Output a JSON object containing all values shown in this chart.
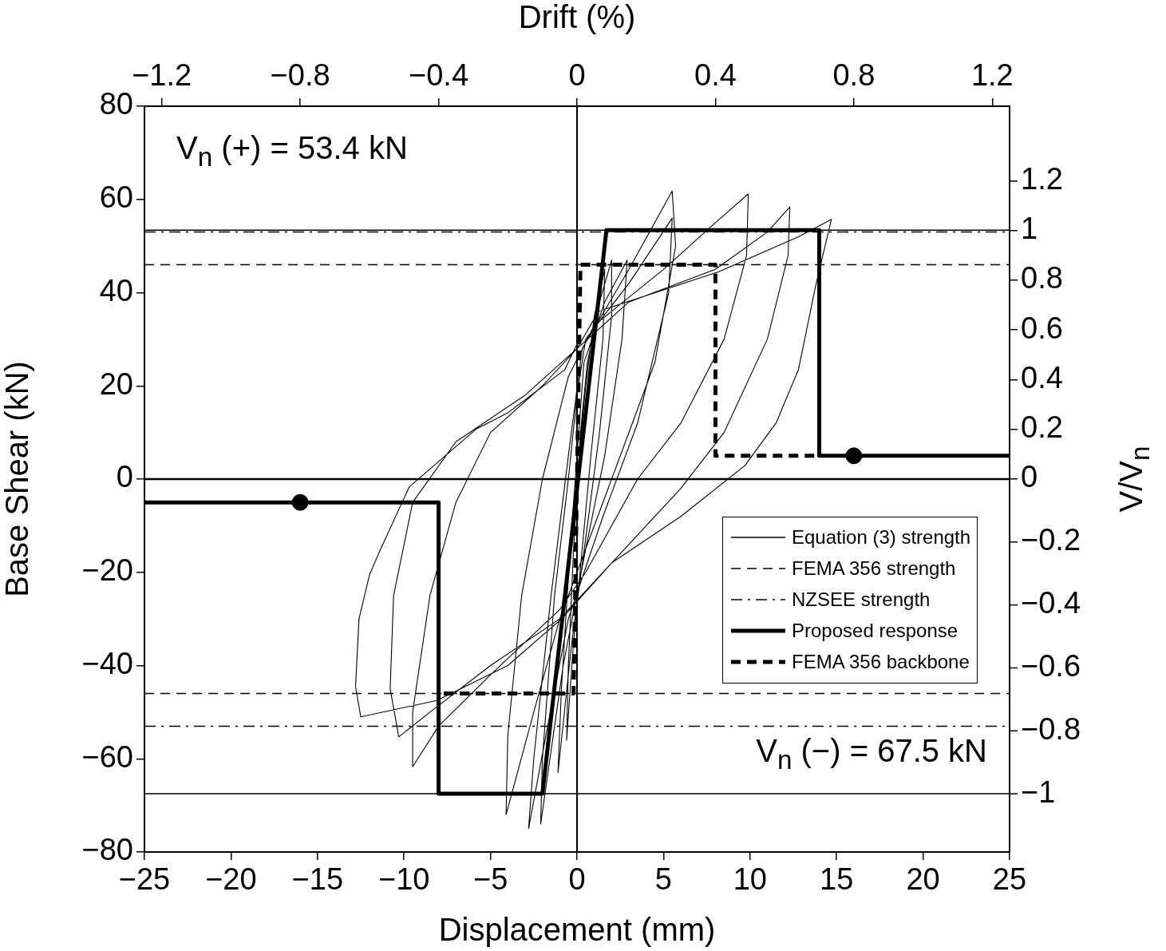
{
  "chart_data": {
    "type": "line",
    "xlabel": "Displacement (mm)",
    "ylabel": "Base Shear (kN)",
    "x2label": "Drift (%)",
    "y2label": "V/V$_{n}$",
    "xlim": [
      -25,
      25
    ],
    "xticks": [
      -25,
      -20,
      -15,
      -10,
      -5,
      0,
      5,
      10,
      15,
      20,
      25
    ],
    "ylim": [
      -80,
      80
    ],
    "yticks": [
      -80,
      -60,
      -40,
      -20,
      0,
      20,
      40,
      60,
      80
    ],
    "x2lim": [
      -1.25,
      1.25
    ],
    "x2ticks": [
      -1.2,
      -0.8,
      -0.4,
      0,
      0.4,
      0.8,
      1.2
    ],
    "y2lim": [
      -1.5,
      1.5
    ],
    "y2ticks": [
      0,
      0.2,
      0.4,
      0.6,
      0.8,
      1,
      1.2
    ],
    "y3lim": [
      -1.185,
      1.185
    ],
    "y3ticks": [
      -1,
      -0.8,
      -0.6,
      -0.4,
      -0.2
    ],
    "grid": false,
    "legend": "right",
    "marker": "none",
    "line_style": "solid",
    "annotations": [
      "V$_{n}$ (+) = 53.4 kN",
      "V$_{n}$ (−) = 67.5 kN"
    ],
    "series": [
      {
        "color": "#000000",
        "line_style": "solid",
        "x": [
          0,
          0
        ],
        "values": [
          -80,
          80
        ]
      },
      {
        "color": "#000000",
        "line_style": "solid",
        "x": [
          -25,
          25
        ],
        "values": [
          0,
          0
        ]
      },
      {
        "color": "#000000",
        "x": [
          0,
          0.5,
          1,
          1.6,
          1.5,
          0.8,
          0.3,
          -0.2,
          -0.6,
          -0.5,
          -0.2,
          0.2,
          0.6,
          1.3,
          2.0,
          2.0,
          1.3,
          0.6,
          -0.3,
          -1.1,
          -0.9,
          -0.4,
          0,
          0.4,
          1.6,
          2.9,
          2.6,
          1.6,
          0.5,
          -0.8,
          -2.1,
          -2.0,
          -1.3,
          -0.5,
          0,
          0.5,
          3,
          5.5,
          5.3,
          3.5,
          1.5,
          -0.5,
          -1.8,
          -2.8,
          -2.5,
          -1.5,
          -0.5,
          0.3,
          3,
          5.5,
          5.7,
          4.5,
          2.5,
          0.5,
          -1,
          -2.5,
          -4.1,
          -4.0,
          -3.2,
          -2,
          -0.5,
          1,
          5,
          8,
          9.9,
          9.8,
          8.5,
          6,
          3.5,
          0.5,
          -1,
          -5,
          -8,
          -9.5,
          -9.5,
          -8.5,
          -7,
          -5,
          -2,
          0,
          3,
          8,
          11,
          12.3,
          12.2,
          11,
          8.5,
          6,
          2,
          -1,
          -5,
          -8.5,
          -10.3,
          -10.8,
          -10.6,
          -9.5,
          -7,
          -3,
          0,
          1.25,
          8.2,
          12.8,
          14.7,
          14.4,
          13.8,
          12.8,
          11.5,
          9.7,
          6,
          2,
          -0.9,
          -4,
          -8.1,
          -12.5,
          -12.8,
          -12.6,
          -12,
          -11.4,
          -9.7,
          -5.8,
          -4,
          -0.7,
          0
        ],
        "values": [
          0,
          20,
          35,
          45,
          30,
          5,
          -15,
          -35,
          -56,
          -40,
          -15,
          10,
          25,
          38,
          47,
          35,
          10,
          -10,
          -35,
          -63,
          -45,
          -15,
          5,
          25,
          38,
          47,
          30,
          5,
          -15,
          -40,
          -74,
          -60,
          -25,
          0,
          18,
          30,
          42,
          56,
          40,
          12,
          -8,
          -30,
          -55,
          -75,
          -60,
          -25,
          5,
          28,
          45,
          61.8,
          50,
          25,
          5,
          -15,
          -30,
          -50,
          -72,
          -55,
          -25,
          0,
          22,
          33,
          45,
          55,
          61.2,
          48,
          30,
          12,
          0,
          -20,
          -28,
          -42,
          -53,
          -61.7,
          -50,
          -25,
          -5,
          10,
          20,
          28,
          38,
          45,
          53,
          58.4,
          48,
          30,
          10,
          -2,
          -18,
          -30,
          -40,
          -50,
          -55.3,
          -45,
          -25,
          -5,
          8,
          18,
          28,
          36,
          44.5,
          52,
          55.7,
          51,
          41.6,
          23.5,
          12,
          2.9,
          -8,
          -18,
          -30,
          -40,
          -47.5,
          -51,
          -44.5,
          -30,
          -20.6,
          -15.4,
          -1.7,
          10.8,
          14.2,
          23.5,
          29
        ]
      },
      {
        "name": "Equation (3) strength",
        "color": "#000000",
        "line_style": "solid",
        "x": [
          -25,
          25
        ],
        "values": [
          53.4,
          53.4
        ]
      },
      {
        "name": "FEMA 356 strength",
        "color": "#000000",
        "line_style": "dashed",
        "x": [
          -25,
          25
        ],
        "values": [
          46,
          46
        ]
      },
      {
        "name": "NZSEE strength",
        "color": "#000000",
        "line_style": "dashdot",
        "x": [
          -25,
          25
        ],
        "values": [
          53,
          53
        ]
      },
      {
        "color": "#000000",
        "line_style": "solid",
        "x": [
          -25,
          25
        ],
        "values": [
          -67.5,
          -67.5
        ]
      },
      {
        "color": "#000000",
        "line_style": "dashed",
        "x": [
          -25,
          25
        ],
        "values": [
          -46,
          -46
        ]
      },
      {
        "color": "#000000",
        "line_style": "dashdot",
        "x": [
          -25,
          25
        ],
        "values": [
          -53,
          -53
        ]
      },
      {
        "name": "Proposed response",
        "color": "#000000",
        "line_style": "solid",
        "x": [
          -25,
          -8,
          -8,
          -2,
          1.7,
          14,
          14,
          25
        ],
        "values": [
          -5,
          -5,
          -67.5,
          -67.5,
          53.4,
          53.4,
          5,
          5
        ]
      },
      {
        "name": "FEMA 356 backbone",
        "color": "#000000",
        "line_style": "dashed",
        "x": [
          -7.7,
          -0.2,
          0.2,
          8,
          8,
          14
        ],
        "values": [
          -46,
          -46,
          46,
          46,
          5,
          5
        ]
      },
      {
        "type": "scatter",
        "color": "#000000",
        "marker": "circle",
        "x": [
          -16,
          16
        ],
        "values": [
          -5,
          5
        ]
      }
    ]
  }
}
